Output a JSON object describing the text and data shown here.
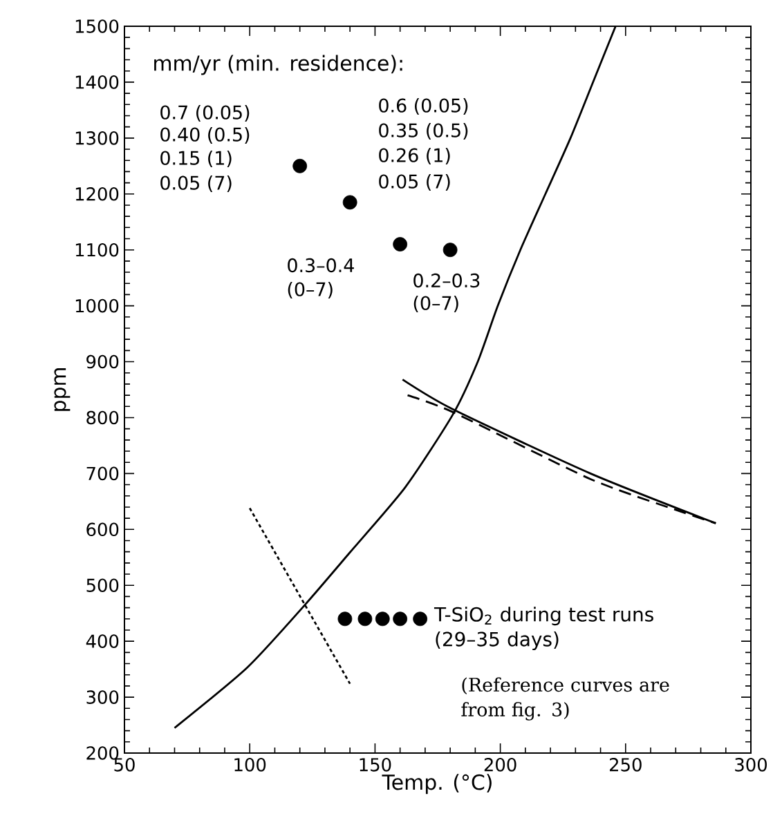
{
  "chart_data": {
    "type": "scatter",
    "xlabel": "Temp. (°C)",
    "ylabel": "ppm",
    "xlim": [
      50,
      300
    ],
    "xticks": [
      50,
      100,
      150,
      200,
      250,
      300
    ],
    "ylim": [
      200,
      1500
    ],
    "yticks": [
      200,
      300,
      400,
      500,
      600,
      700,
      800,
      900,
      1000,
      1100,
      1200,
      1300,
      1400,
      1500
    ],
    "grid": false,
    "legend": false,
    "marker": "circle",
    "series": [
      {
        "type": "scatter",
        "color": "#000000",
        "x": [
          120,
          140,
          160,
          180
        ],
        "values": [
          1250,
          1185,
          1110,
          1100
        ]
      },
      {
        "type": "scatter",
        "name": "T-SiO$_{2}$ during test runs (29–35 days)",
        "color": "#000000",
        "x": [
          138,
          146,
          153,
          160,
          168
        ],
        "values": [
          440,
          440,
          440,
          440,
          440
        ]
      },
      {
        "type": "line",
        "color": "#000000",
        "line_style": "solid",
        "marker": "none",
        "x": [
          70,
          99,
          122,
          140,
          162,
          181,
          191,
          199,
          208,
          218,
          228,
          237,
          246
        ],
        "values": [
          245,
          353,
          465,
          559,
          675,
          805,
          900,
          1000,
          1100,
          1200,
          1300,
          1400,
          1500
        ]
      },
      {
        "type": "line",
        "color": "#000000",
        "line_style": "solid",
        "marker": "none",
        "x": [
          161,
          181,
          236,
          286
        ],
        "values": [
          868,
          815,
          700,
          611
        ]
      },
      {
        "type": "line",
        "color": "#000000",
        "line_style": "dashed",
        "marker": "none",
        "x": [
          163,
          181,
          236,
          272,
          286
        ],
        "values": [
          840,
          810,
          690,
          632,
          611
        ]
      },
      {
        "type": "line",
        "color": "#000000",
        "line_style": "dotted",
        "marker": "none",
        "x": [
          100,
          140
        ],
        "values": [
          638,
          324
        ]
      }
    ],
    "annotations": [
      "mm/yr (min. residence):",
      "0.7 (0.05)",
      "0.40 (0.5)",
      "0.15 (1)",
      "0.05 (7)",
      "0.6 (0.05)",
      "0.35 (0.5)",
      "0.26 (1)",
      "0.05 (7)",
      "0.3–0.4",
      "(0–7)",
      "0.2–0.3",
      "(0–7)",
      "(Reference curves are from fig. 3)"
    ]
  }
}
